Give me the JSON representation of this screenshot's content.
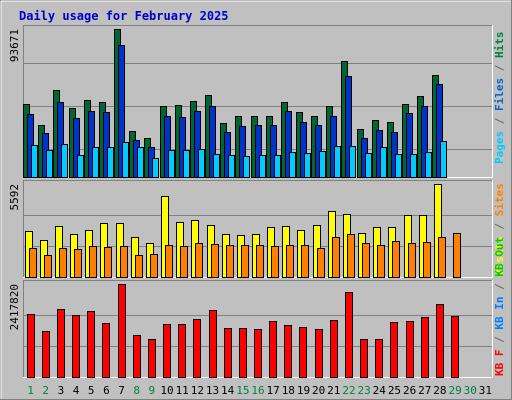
{
  "chart_data": {
    "type": "bar",
    "title": "Daily usage for February 2025",
    "days": [
      "1",
      "2",
      "3",
      "4",
      "5",
      "6",
      "7",
      "8",
      "9",
      "10",
      "11",
      "12",
      "13",
      "14",
      "15",
      "16",
      "17",
      "18",
      "19",
      "20",
      "21",
      "22",
      "23",
      "24",
      "25",
      "26",
      "27",
      "28",
      "29",
      "30",
      "31"
    ],
    "weekend_days": [
      "1",
      "2",
      "8",
      "9",
      "15",
      "16",
      "22",
      "23",
      "29",
      "30"
    ],
    "panels": [
      {
        "name": "hits-files-pages",
        "ymax_label": "93671",
        "ymax": 93671,
        "right_label": [
          {
            "text": "Pages",
            "color": "#00ccff"
          },
          {
            "text": " / ",
            "color": "#666666"
          },
          {
            "text": "Files",
            "color": "#0066cc"
          },
          {
            "text": " / ",
            "color": "#666666"
          },
          {
            "text": "Hits",
            "color": "#008040"
          }
        ],
        "series": [
          {
            "name": "Hits",
            "color": "#006633",
            "values": [
              46500,
              32800,
              54900,
              43400,
              48500,
              47600,
              93671,
              28900,
              24500,
              44900,
              45300,
              48300,
              51700,
              34100,
              38500,
              38400,
              38400,
              47500,
              41100,
              38700,
              44900,
              73200,
              30500,
              35900,
              35000,
              46200,
              51400,
              64700,
              null,
              null,
              null
            ]
          },
          {
            "name": "Files",
            "color": "#0033cc",
            "values": [
              40100,
              27900,
              47700,
              37100,
              41700,
              41000,
              83600,
              23300,
              18800,
              38800,
              37900,
              41800,
              45100,
              28600,
              32400,
              32600,
              32800,
              41600,
              35000,
              33100,
              38400,
              63700,
              24800,
              29900,
              28700,
              40300,
              44700,
              59000,
              null,
              null,
              null
            ]
          },
          {
            "name": "Pages",
            "color": "#00ccff",
            "values": [
              20000,
              16900,
              21000,
              14200,
              18800,
              18800,
              22300,
              18800,
              11800,
              17100,
              16900,
              17500,
              14600,
              14200,
              13100,
              14200,
              14200,
              15600,
              14900,
              16300,
              19900,
              19500,
              15000,
              18900,
              14300,
              14500,
              15800,
              22500,
              null,
              null,
              null
            ]
          }
        ]
      },
      {
        "name": "visits-sites-kb",
        "ymax_label": "5592",
        "ymax": 5592,
        "right_label": [
          {
            "text": "Visits",
            "color": "#ffff00"
          },
          {
            "text": " / ",
            "color": "#666666"
          },
          {
            "text": "Sites",
            "color": "#ff8000"
          }
        ],
        "series": [
          {
            "name": "Visits",
            "color": "#ffff00",
            "values": [
              2750,
              2250,
              3050,
              2600,
              2850,
              3250,
              3250,
              2400,
              2050,
              4900,
              3300,
              3450,
              3150,
              2600,
              2500,
              2600,
              3000,
              3050,
              2800,
              3150,
              3980,
              3800,
              2650,
              3000,
              3000,
              3700,
              3750,
              5592,
              null,
              null,
              null
            ]
          },
          {
            "name": "Sites",
            "color": "#ff8000",
            "values": [
              1750,
              1300,
              1750,
              1700,
              1850,
              1800,
              1850,
              1350,
              1400,
              1950,
              1850,
              2050,
              2000,
              1900,
              1900,
              1900,
              1850,
              1900,
              1950,
              1750,
              2400,
              2600,
              2050,
              1900,
              2150,
              2050,
              2100,
              2400,
              2650,
              null,
              null
            ]
          }
        ]
      },
      {
        "name": "kb-in-out",
        "ymax_label": "2417820",
        "ymax": 2417820,
        "right_label": [
          {
            "text": "KB F",
            "color": "#ff0000"
          },
          {
            "text": " / ",
            "color": "#666666"
          },
          {
            "text": "KB In",
            "color": "#0080ff"
          },
          {
            "text": " / ",
            "color": "#666666"
          },
          {
            "text": "KB Out",
            "color": "#00cc00"
          }
        ],
        "series": [
          {
            "name": "KB F",
            "color": "#ff0000",
            "values": [
              1630000,
              1190000,
              1760000,
              1620000,
              1710000,
              1400000,
              2417820,
              1080000,
              1000000,
              1390000,
              1390000,
              1510000,
              1740000,
              1270000,
              1270000,
              1260000,
              1450000,
              1360000,
              1310000,
              1260000,
              1480000,
              2200000,
              980000,
              1000000,
              1440000,
              1450000,
              1550000,
              1890000,
              1580000,
              null,
              null
            ]
          }
        ]
      }
    ]
  }
}
